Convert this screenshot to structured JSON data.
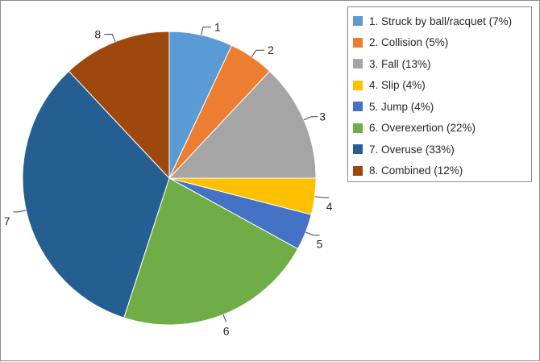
{
  "chart_data": {
    "type": "pie",
    "title": "",
    "slices": [
      {
        "id": "1",
        "label": "1. Struck by ball/racquet (7%)",
        "value": 7,
        "color": "#5b9bd5"
      },
      {
        "id": "2",
        "label": "2. Collision (5%)",
        "value": 5,
        "color": "#ed7d31"
      },
      {
        "id": "3",
        "label": "3. Fall (13%)",
        "value": 13,
        "color": "#a5a5a5"
      },
      {
        "id": "4",
        "label": "4. Slip (4%)",
        "value": 4,
        "color": "#ffc000"
      },
      {
        "id": "5",
        "label": "5. Jump (4%)",
        "value": 4,
        "color": "#4472c4"
      },
      {
        "id": "6",
        "label": "6. Overexertion (22%)",
        "value": 22,
        "color": "#70ad47"
      },
      {
        "id": "7",
        "label": "7. Overuse (33%)",
        "value": 33,
        "color": "#255e91"
      },
      {
        "id": "8",
        "label": "8. Combined (12%)",
        "value": 12,
        "color": "#9e480e"
      }
    ],
    "start": "12 o'clock",
    "direction": "clockwise",
    "legend_position": "right"
  }
}
